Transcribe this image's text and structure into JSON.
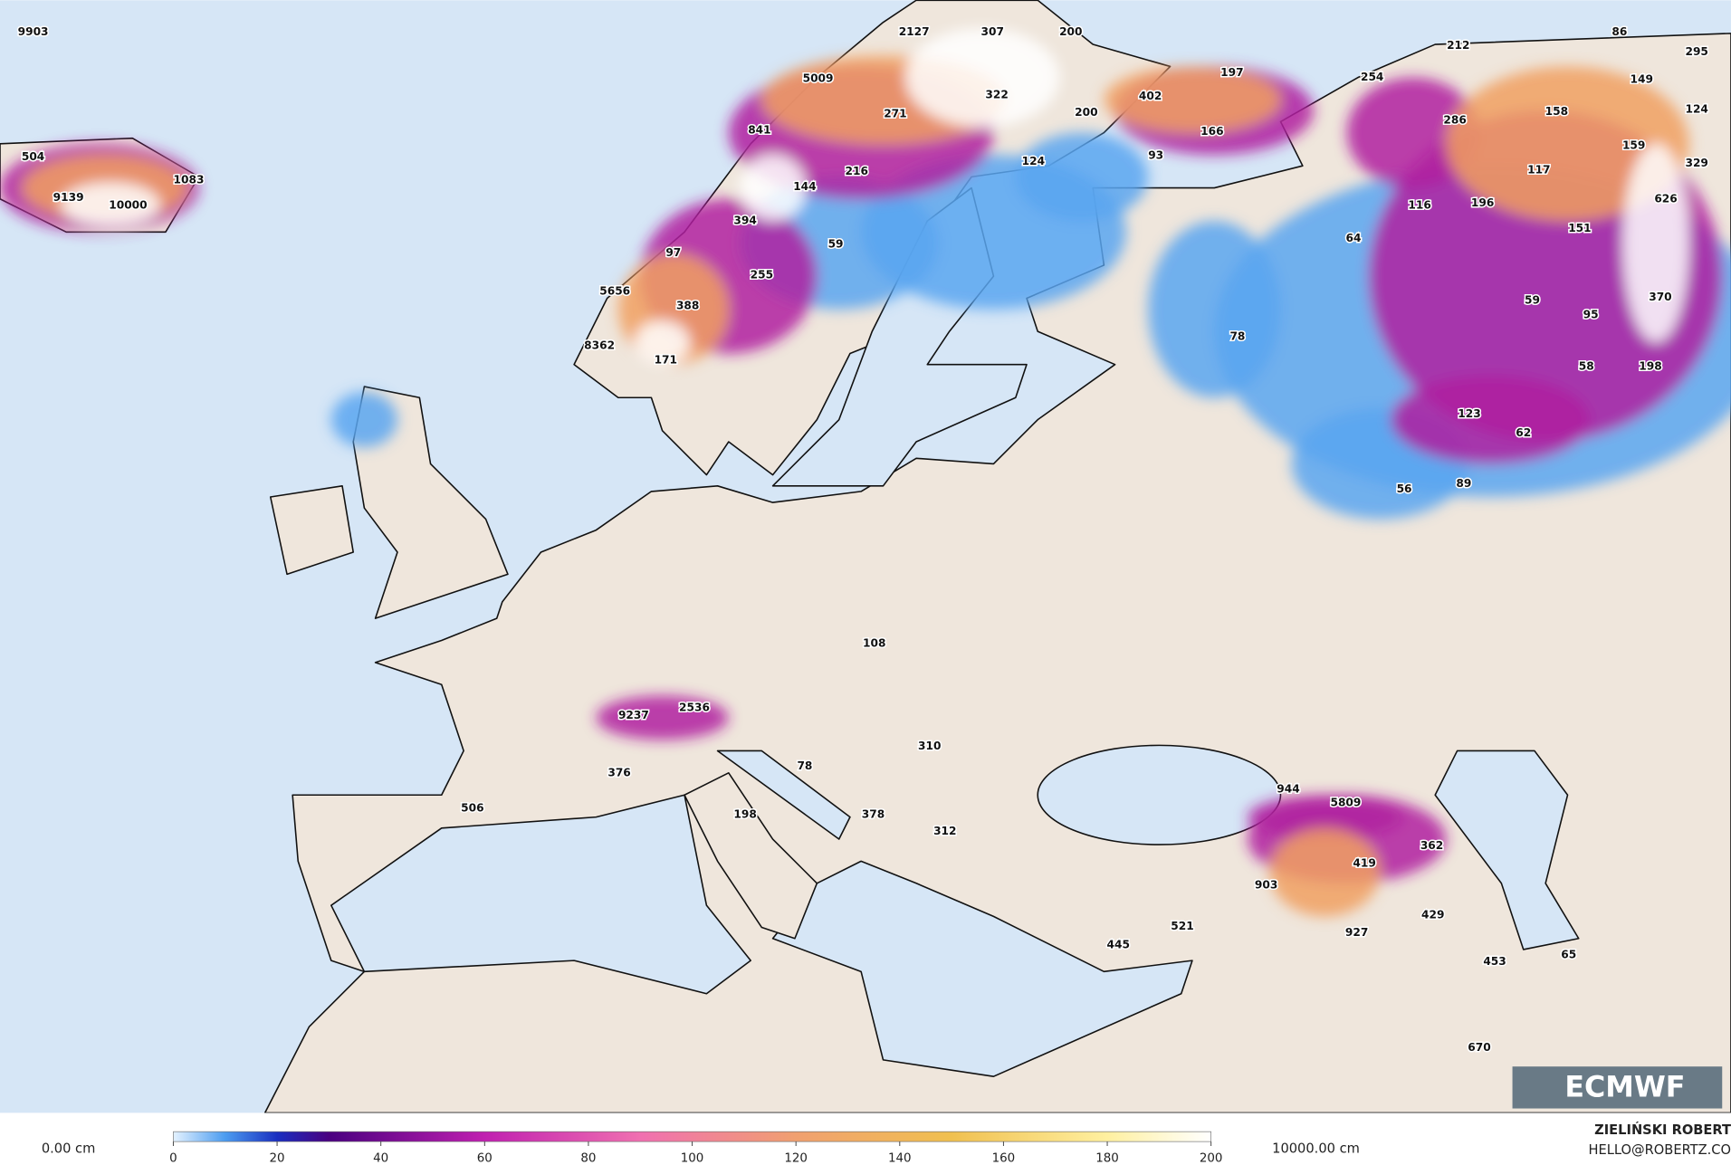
{
  "map": {
    "point_labels": [
      "9903",
      "2127",
      "307",
      "200",
      "212",
      "86",
      "295",
      "504",
      "1083",
      "9139",
      "10000",
      "5009",
      "322",
      "197",
      "254",
      "149",
      "271",
      "200",
      "402",
      "166",
      "286",
      "158",
      "124",
      "841",
      "124",
      "93",
      "159",
      "329",
      "216",
      "144",
      "117",
      "116",
      "196",
      "626",
      "394",
      "59",
      "64",
      "151",
      "97",
      "255",
      "370",
      "5656",
      "59",
      "95",
      "388",
      "78",
      "8362",
      "171",
      "58",
      "198",
      "123",
      "62",
      "56",
      "89",
      "108",
      "2536",
      "9237",
      "310",
      "78",
      "376",
      "944",
      "5809",
      "506",
      "198",
      "378",
      "312",
      "362",
      "419",
      "903",
      "429",
      "521",
      "927",
      "445",
      "65",
      "453",
      "670"
    ],
    "logo": "ECMWF",
    "colorbar": {
      "ticks": [
        0,
        20,
        40,
        60,
        80,
        100,
        120,
        140,
        160,
        180,
        200
      ],
      "min_label": "0.00 cm",
      "max_label": "10000.00 cm"
    },
    "credit": {
      "name": "ZIELIŃSKI ROBERT",
      "email": "HELLO@ROBERTZ.CO"
    }
  }
}
